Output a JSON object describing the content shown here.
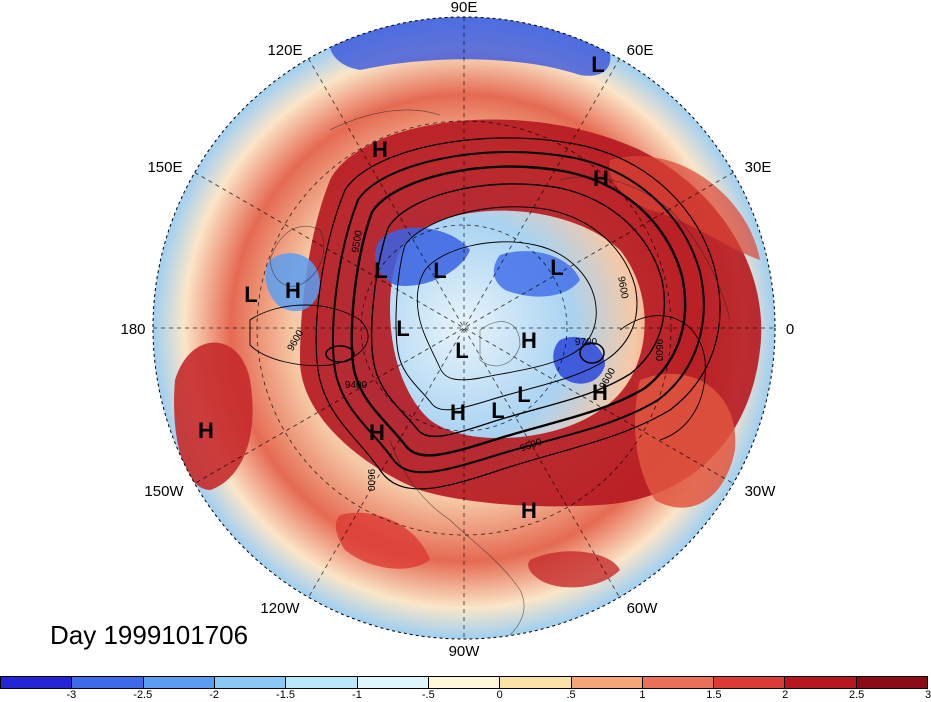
{
  "map": {
    "longitude_labels": [
      "90E",
      "60E",
      "30E",
      "0",
      "30W",
      "60W",
      "90W",
      "120W",
      "150W",
      "180",
      "150E",
      "120E"
    ],
    "pressure_systems": [
      "L",
      "H",
      "H",
      "H",
      "L",
      "L",
      "L",
      "L",
      "H",
      "L",
      "H",
      "L",
      "L",
      "H",
      "L",
      "H",
      "H",
      "H"
    ],
    "contour_labels": [
      "9400",
      "9500",
      "9500",
      "9600",
      "9600",
      "9600",
      "9600",
      "9600",
      "9700"
    ],
    "colors": {
      "strong_positive": "#9b0f19",
      "strong_negative": "#1f2fd6",
      "contours": "#000000"
    }
  },
  "title": "Day 1999101706",
  "colorbar": {
    "colors": [
      "#2323d8",
      "#3d6ae8",
      "#5b9df0",
      "#8ac8f6",
      "#b9e8fb",
      "#e0f6fd",
      "#fdf8d8",
      "#fae3a6",
      "#f5a877",
      "#ec6f58",
      "#dc3b35",
      "#b8161e",
      "#8c0b14"
    ],
    "ticks": [
      "-3",
      "-2.5",
      "-2",
      "-1.5",
      "-1",
      "-.5",
      "0",
      ".5",
      "1",
      "1.5",
      "2",
      "2.5",
      "3"
    ]
  }
}
